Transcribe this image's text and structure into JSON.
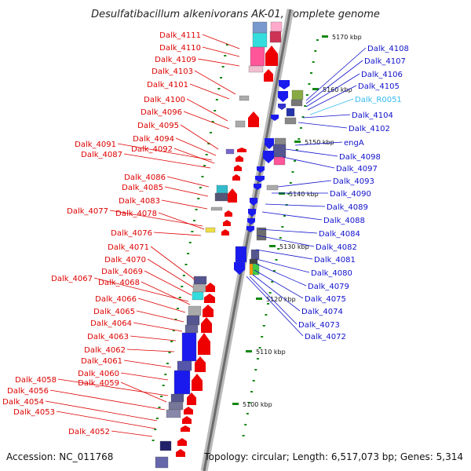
{
  "title": "Desulfatibacillum alkenivorans AK-01, complete genome",
  "accession": "Accession: NC_011768",
  "topology": "Topology: circular; Length: 6,517,073 bp; Genes: 5,314",
  "colors": {
    "left_labels": "#dd0000",
    "right_labels": "#1010cc",
    "rna_label": "#33bbee",
    "backbone": "#999999",
    "tick": "#118811"
  },
  "kbp_ticks": [
    "5170 kbp",
    "5160 kbp",
    "5150 kbp",
    "5140 kbp",
    "5130 kbp",
    "5120 kbp",
    "5110 kbp",
    "5100 kbp"
  ],
  "left_labels": [
    "Dalk_4111",
    "Dalk_4110",
    "Dalk_4109",
    "Dalk_4103",
    "Dalk_4101",
    "Dalk_4100",
    "Dalk_4096",
    "Dalk_4095",
    "Dalk_4094",
    "Dalk_4091",
    "Dalk_4092",
    "Dalk_4087",
    "Dalk_4086",
    "Dalk_4085",
    "Dalk_4083",
    "Dalk_4077",
    "Dalk_4078",
    "Dalk_4076",
    "Dalk_4071",
    "Dalk_4070",
    "Dalk_4069",
    "Dalk_4067",
    "Dalk_4068",
    "Dalk_4066",
    "Dalk_4065",
    "Dalk_4064",
    "Dalk_4063",
    "Dalk_4062",
    "Dalk_4061",
    "Dalk_4060",
    "Dalk_4058",
    "Dalk_4059",
    "Dalk_4056",
    "Dalk_4054",
    "Dalk_4053",
    "Dalk_4052"
  ],
  "right_labels": [
    "Dalk_4108",
    "Dalk_4107",
    "Dalk_4106",
    "Dalk_4105",
    "Dalk_R0051",
    "Dalk_4104",
    "Dalk_4102",
    "engA",
    "Dalk_4098",
    "Dalk_4097",
    "Dalk_4093",
    "Dalk_4090",
    "Dalk_4089",
    "Dalk_4088",
    "Dalk_4084",
    "Dalk_4082",
    "Dalk_4081",
    "Dalk_4080",
    "Dalk_4079",
    "Dalk_4075",
    "Dalk_4074",
    "Dalk_4073",
    "Dalk_4072"
  ]
}
